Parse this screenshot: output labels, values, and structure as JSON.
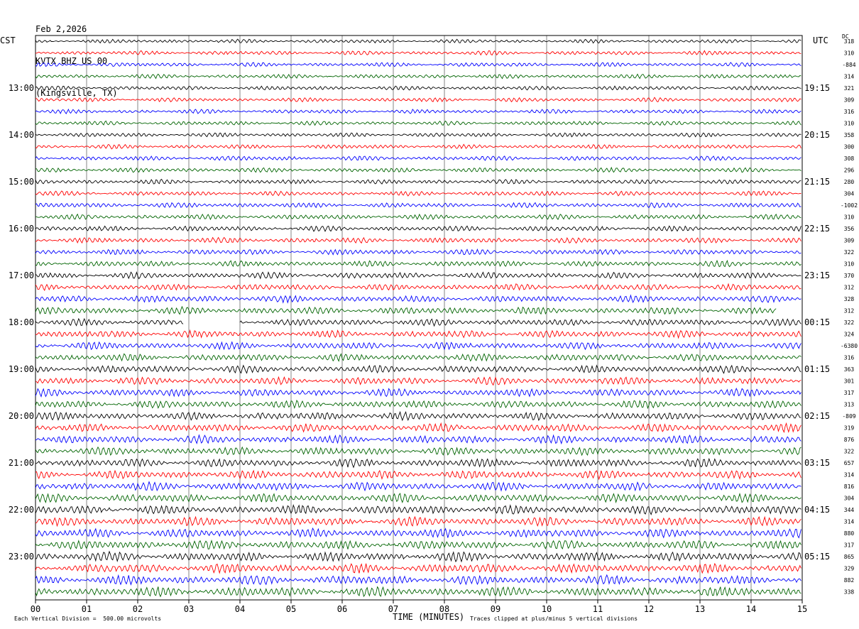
{
  "header": {
    "date": "Feb 2,2026",
    "station": "KVTX BHZ US 00",
    "location": "(Kingsville, TX)"
  },
  "axis": {
    "left_zone": "CST",
    "right_zone": "UTC",
    "dc_label": "DC",
    "xlabel": "TIME (MINUTES)"
  },
  "footer": {
    "scale_note": "Each Vertical Division =  500.00 microvolts",
    "clip_note": "Traces clipped at plus/minus 5 vertical divisions"
  },
  "colors": {
    "trace_cycle": [
      "#000000",
      "#ff0000",
      "#0000ff",
      "#006400"
    ],
    "grid": "#000000",
    "background": "#ffffff"
  },
  "chart_data": {
    "type": "line",
    "title": "Feb 2,2026 KVTX BHZ US 00 (Kingsville, TX)",
    "xlabel": "TIME (MINUTES)",
    "x_ticks": [
      "00",
      "01",
      "02",
      "03",
      "04",
      "05",
      "06",
      "07",
      "08",
      "09",
      "10",
      "11",
      "12",
      "13",
      "14",
      "15"
    ],
    "xlim": [
      0,
      15
    ],
    "grid": true,
    "trace_interval_minutes": 15,
    "trace_count": 48,
    "left_hour_labels": [
      {
        "trace": 4,
        "label": "13:00"
      },
      {
        "trace": 8,
        "label": "14:00"
      },
      {
        "trace": 12,
        "label": "15:00"
      },
      {
        "trace": 16,
        "label": "16:00"
      },
      {
        "trace": 20,
        "label": "17:00"
      },
      {
        "trace": 24,
        "label": "18:00"
      },
      {
        "trace": 28,
        "label": "19:00"
      },
      {
        "trace": 32,
        "label": "20:00"
      },
      {
        "trace": 36,
        "label": "21:00"
      },
      {
        "trace": 40,
        "label": "22:00"
      },
      {
        "trace": 44,
        "label": "23:00"
      }
    ],
    "right_hour_labels": [
      {
        "trace": 4,
        "label": "19:15"
      },
      {
        "trace": 8,
        "label": "20:15"
      },
      {
        "trace": 12,
        "label": "21:15"
      },
      {
        "trace": 16,
        "label": "22:15"
      },
      {
        "trace": 20,
        "label": "23:15"
      },
      {
        "trace": 24,
        "label": "00:15"
      },
      {
        "trace": 28,
        "label": "01:15"
      },
      {
        "trace": 32,
        "label": "02:15"
      },
      {
        "trace": 36,
        "label": "03:15"
      },
      {
        "trace": 40,
        "label": "04:15"
      },
      {
        "trace": 44,
        "label": "05:15"
      }
    ],
    "dc_offsets": [
      "318",
      "310",
      "-884",
      "314",
      "321",
      "309",
      "316",
      "310",
      "358",
      "300",
      "308",
      "296",
      "280",
      "304",
      "-1002",
      "310",
      "356",
      "309",
      "322",
      "310",
      "370",
      "312",
      "328",
      "312",
      "322",
      "324",
      "-6380",
      "316",
      "363",
      "301",
      "317",
      "313",
      "-809",
      "319",
      "876",
      "322",
      "657",
      "314",
      "816",
      "304",
      "344",
      "314",
      "880",
      "317",
      "865",
      "329",
      "882",
      "338"
    ],
    "amplitudes": [
      0.45,
      0.5,
      0.5,
      0.5,
      0.5,
      0.5,
      0.5,
      0.5,
      0.5,
      0.5,
      0.55,
      0.55,
      0.55,
      0.55,
      0.6,
      0.6,
      0.65,
      0.65,
      0.65,
      0.7,
      0.75,
      0.75,
      0.8,
      0.85,
      0.8,
      0.85,
      0.85,
      0.85,
      0.9,
      0.9,
      0.9,
      0.9,
      0.95,
      0.95,
      0.95,
      0.95,
      1.0,
      1.0,
      1.0,
      1.0,
      1.05,
      1.05,
      1.05,
      1.05,
      1.1,
      1.1,
      1.1,
      1.15
    ],
    "gaps": [
      {
        "trace": 23,
        "from_minute": 14.5,
        "to_minute": 15
      },
      {
        "trace": 24,
        "from_minute": 2.9,
        "to_minute": 4.0
      }
    ]
  }
}
